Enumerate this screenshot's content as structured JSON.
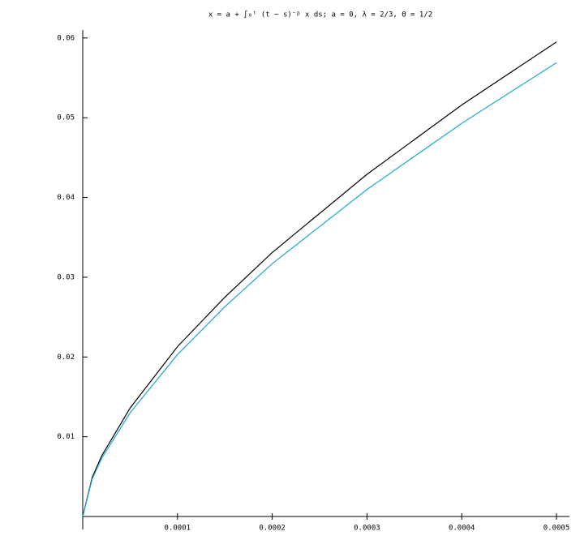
{
  "chart_data": {
    "type": "line",
    "title": "x = a + ∫₀ᵗ (t − s)⁻ᵝ x ds;  a = 0,  λ = 2/3,  Θ = 1/2",
    "x": [
      0,
      1e-05,
      2e-05,
      5e-05,
      0.0001,
      0.00015,
      0.0002,
      0.0003,
      0.0004,
      0.0005
    ],
    "series": [
      {
        "color": "#000000",
        "values": [
          0,
          0.0049,
          0.0076,
          0.0136,
          0.0213,
          0.0275,
          0.0331,
          0.0429,
          0.0516,
          0.0595
        ]
      },
      {
        "color": "#1aa7cf",
        "values": [
          0,
          0.0047,
          0.0073,
          0.013,
          0.0203,
          0.0263,
          0.0317,
          0.041,
          0.0493,
          0.0569
        ]
      }
    ],
    "xlim": [
      0,
      0.0005
    ],
    "ylim": [
      0,
      0.061
    ],
    "xticks": [
      0.0001,
      0.0002,
      0.0003,
      0.0004,
      0.0005
    ],
    "yticks": [
      0.01,
      0.02,
      0.03,
      0.04,
      0.05,
      0.06
    ]
  }
}
